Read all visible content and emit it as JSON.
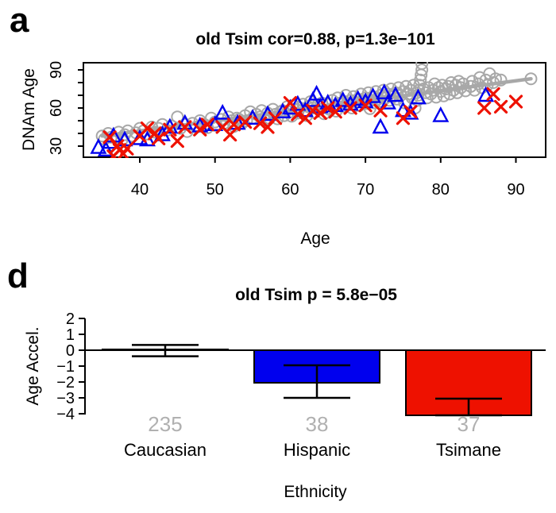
{
  "figure": {
    "panel_a_letter": "a",
    "panel_d_letter": "d"
  },
  "chart_data": [
    {
      "type": "scatter",
      "panel": "a",
      "title": "old Tsim cor=0.88, p=1.3e−101",
      "xlabel": "Age",
      "ylabel": "DNAm Age",
      "xlim": [
        32.5,
        94
      ],
      "ylim": [
        21,
        95.5
      ],
      "x_ticks": [
        40,
        50,
        60,
        70,
        80,
        90
      ],
      "y_ticks": [
        30,
        40,
        50,
        60,
        70,
        80,
        90
      ],
      "y_tick_labels": {
        "30": "30",
        "60": "60",
        "90": "90"
      },
      "grid": false,
      "regression_line": {
        "x1": 35,
        "y1": 38,
        "x2": 92,
        "y2": 83,
        "color": "#a8a8a8"
      },
      "series": [
        {
          "name": "Caucasian",
          "marker": "circle",
          "color": "#a8a8a8",
          "points": [
            [
              35,
              38
            ],
            [
              35.3,
              35.5
            ],
            [
              35.8,
              40
            ],
            [
              36.2,
              37
            ],
            [
              36.8,
              36
            ],
            [
              37.2,
              41
            ],
            [
              37.6,
              34.5
            ],
            [
              38,
              39
            ],
            [
              38.4,
              42
            ],
            [
              39,
              38
            ],
            [
              39.5,
              40.5
            ],
            [
              40,
              44
            ],
            [
              40.5,
              42
            ],
            [
              41,
              39.5
            ],
            [
              41.6,
              45
            ],
            [
              42,
              41
            ],
            [
              42.5,
              44
            ],
            [
              43,
              47
            ],
            [
              43.6,
              42.5
            ],
            [
              44.2,
              46
            ],
            [
              45,
              53
            ],
            [
              45.4,
              44
            ],
            [
              46,
              47
            ],
            [
              46.3,
              41.5
            ],
            [
              47,
              48
            ],
            [
              47.5,
              45
            ],
            [
              48,
              50
            ],
            [
              48.6,
              47
            ],
            [
              49,
              44.5
            ],
            [
              49.5,
              52
            ],
            [
              50,
              49
            ],
            [
              50.2,
              46
            ],
            [
              50.8,
              51
            ],
            [
              51.2,
              48
            ],
            [
              51.8,
              53
            ],
            [
              52.2,
              50
            ],
            [
              52.5,
              45.5
            ],
            [
              52.9,
              52
            ],
            [
              53.2,
              51
            ],
            [
              53.6,
              48
            ],
            [
              54,
              54
            ],
            [
              54.2,
              50
            ],
            [
              54.7,
              57
            ],
            [
              55,
              52
            ],
            [
              55.5,
              55
            ],
            [
              56,
              53
            ],
            [
              56.2,
              58
            ],
            [
              56.6,
              50.5
            ],
            [
              57,
              56
            ],
            [
              57.2,
              52
            ],
            [
              57.7,
              59
            ],
            [
              58,
              55
            ],
            [
              58.3,
              51.5
            ],
            [
              58.7,
              57
            ],
            [
              59,
              58
            ],
            [
              59.2,
              54
            ],
            [
              59.6,
              61
            ],
            [
              60,
              57
            ],
            [
              60.2,
              53.5
            ],
            [
              60.4,
              62
            ],
            [
              60.8,
              59
            ],
            [
              61,
              56
            ],
            [
              61.3,
              60
            ],
            [
              61.7,
              63
            ],
            [
              62,
              58
            ],
            [
              62.2,
              54
            ],
            [
              62.4,
              61
            ],
            [
              62.7,
              65
            ],
            [
              63,
              60
            ],
            [
              63.2,
              56.5
            ],
            [
              63.6,
              62
            ],
            [
              64,
              59
            ],
            [
              64.2,
              64
            ],
            [
              64.5,
              55.5
            ],
            [
              65,
              63
            ],
            [
              65.2,
              59
            ],
            [
              65.6,
              66
            ],
            [
              66,
              62
            ],
            [
              66.1,
              57.5
            ],
            [
              66.3,
              68
            ],
            [
              66.7,
              64
            ],
            [
              67,
              61
            ],
            [
              67.2,
              65
            ],
            [
              67.4,
              70
            ],
            [
              67.7,
              63
            ],
            [
              68,
              66
            ],
            [
              68.2,
              60
            ],
            [
              68.4,
              69
            ],
            [
              68.7,
              64.5
            ],
            [
              69,
              67
            ],
            [
              69.2,
              62
            ],
            [
              69.4,
              71
            ],
            [
              69.7,
              65
            ],
            [
              70,
              68
            ],
            [
              70.2,
              63.5
            ],
            [
              70.4,
              72
            ],
            [
              70.6,
              59.5
            ],
            [
              70.8,
              66
            ],
            [
              71,
              69
            ],
            [
              71.2,
              64
            ],
            [
              71.4,
              73
            ],
            [
              71.7,
              67
            ],
            [
              72,
              70
            ],
            [
              72.2,
              65
            ],
            [
              72.4,
              74
            ],
            [
              72.7,
              68
            ],
            [
              73,
              71
            ],
            [
              73.2,
              66
            ],
            [
              73.4,
              75
            ],
            [
              73.7,
              69
            ],
            [
              74,
              72
            ],
            [
              74.2,
              67
            ],
            [
              74.4,
              76
            ],
            [
              74.7,
              70
            ],
            [
              75,
              73
            ],
            [
              75.2,
              64
            ],
            [
              75.4,
              77
            ],
            [
              75.7,
              71
            ],
            [
              76,
              74
            ],
            [
              76.2,
              68
            ],
            [
              76.4,
              78
            ],
            [
              76.6,
              60
            ],
            [
              76.8,
              72
            ],
            [
              76.9,
              66
            ],
            [
              77,
              70
            ],
            [
              77.1,
              74
            ],
            [
              77.2,
              78
            ],
            [
              77.3,
              82
            ],
            [
              77.4,
              86
            ],
            [
              77.5,
              90
            ],
            [
              77.5,
              95
            ],
            [
              77.7,
              75
            ],
            [
              78,
              72
            ],
            [
              78.2,
              68
            ],
            [
              78.4,
              76
            ],
            [
              78.7,
              71
            ],
            [
              79,
              74
            ],
            [
              79.2,
              79
            ],
            [
              79.4,
              68.5
            ],
            [
              79.7,
              76
            ],
            [
              80,
              73
            ],
            [
              80.2,
              78
            ],
            [
              80.4,
              69.5
            ],
            [
              80.7,
              75
            ],
            [
              81,
              77
            ],
            [
              81.2,
              71
            ],
            [
              81.4,
              80
            ],
            [
              81.7,
              74
            ],
            [
              82,
              78
            ],
            [
              82.2,
              72
            ],
            [
              82.4,
              81
            ],
            [
              82.7,
              76
            ],
            [
              83,
              79
            ],
            [
              83.3,
              73.5
            ],
            [
              84,
              77
            ],
            [
              84.2,
              81
            ],
            [
              84.5,
              74
            ],
            [
              85,
              79
            ],
            [
              85.2,
              84
            ],
            [
              85.5,
              76
            ],
            [
              86,
              82
            ],
            [
              86.2,
              78
            ],
            [
              86.5,
              87
            ],
            [
              87,
              80
            ],
            [
              87.3,
              83
            ],
            [
              88,
              82
            ],
            [
              92,
              83
            ]
          ]
        },
        {
          "name": "Hispanic",
          "marker": "triangle",
          "color": "#0000ee",
          "points": [
            [
              34.5,
              29
            ],
            [
              35.5,
              27
            ],
            [
              36,
              33
            ],
            [
              36.5,
              38
            ],
            [
              38,
              35
            ],
            [
              40,
              36
            ],
            [
              41,
              35
            ],
            [
              43,
              39
            ],
            [
              44,
              45
            ],
            [
              46,
              48
            ],
            [
              48,
              46
            ],
            [
              50,
              47
            ],
            [
              51,
              56
            ],
            [
              53,
              48
            ],
            [
              55,
              52
            ],
            [
              57,
              55
            ],
            [
              59,
              57
            ],
            [
              60,
              60
            ],
            [
              61,
              63
            ],
            [
              62,
              58
            ],
            [
              63,
              66
            ],
            [
              63.5,
              71
            ],
            [
              64,
              61
            ],
            [
              65,
              64
            ],
            [
              66,
              62
            ],
            [
              67,
              66
            ],
            [
              68,
              63
            ],
            [
              69,
              67
            ],
            [
              70,
              65
            ],
            [
              71,
              69
            ],
            [
              72,
              45
            ],
            [
              72.5,
              72
            ],
            [
              73,
              64
            ],
            [
              74,
              70
            ],
            [
              75,
              58
            ],
            [
              76,
              56
            ],
            [
              77,
              68
            ],
            [
              80,
              54
            ],
            [
              86,
              70
            ]
          ]
        },
        {
          "name": "Tsimane",
          "marker": "x",
          "color": "#ee1100",
          "points": [
            [
              36,
              37
            ],
            [
              36.5,
              22
            ],
            [
              37,
              30
            ],
            [
              37.3,
              27
            ],
            [
              37.8,
              24
            ],
            [
              38.3,
              28
            ],
            [
              40,
              38
            ],
            [
              41,
              44
            ],
            [
              42,
              40
            ],
            [
              42.5,
              36
            ],
            [
              44,
              43
            ],
            [
              45,
              34
            ],
            [
              46,
              45
            ],
            [
              48,
              43
            ],
            [
              49,
              47
            ],
            [
              51,
              45
            ],
            [
              52,
              39
            ],
            [
              52.5,
              47
            ],
            [
              54,
              49
            ],
            [
              56,
              48
            ],
            [
              57,
              45
            ],
            [
              58,
              52
            ],
            [
              60,
              64
            ],
            [
              61,
              55
            ],
            [
              62,
              52
            ],
            [
              63,
              58
            ],
            [
              64,
              56
            ],
            [
              65,
              60
            ],
            [
              66,
              57
            ],
            [
              68,
              60
            ],
            [
              70,
              62
            ],
            [
              72,
              58
            ],
            [
              75,
              52
            ],
            [
              76,
              57
            ],
            [
              85.8,
              60
            ],
            [
              87,
              71
            ],
            [
              88,
              61
            ],
            [
              90,
              65
            ]
          ]
        }
      ]
    },
    {
      "type": "bar",
      "panel": "d",
      "title": "old Tsim p = 5.8e−05",
      "xlabel": "Ethnicity",
      "ylabel": "Age Accel.",
      "categories": [
        "Caucasian",
        "Hispanic",
        "Tsimane"
      ],
      "values": [
        0.05,
        -2.05,
        -4.1
      ],
      "errors_high": [
        0.33,
        -0.95,
        -3.05
      ],
      "errors_low": [
        -0.38,
        -3.0,
        -4.1
      ],
      "counts": [
        "235",
        "38",
        "37"
      ],
      "bar_colors": [
        "#ffffff",
        "#0000ee",
        "#ee1100"
      ],
      "count_color": "#b0b0b0",
      "axis_color": "#000000",
      "y_ticks": [
        2,
        1,
        0,
        -1,
        -2,
        -3,
        -4
      ],
      "y_tick_labels": [
        "2",
        "1",
        "0",
        "−1",
        "−2",
        "−3",
        "−4"
      ],
      "ylim": [
        -4.3,
        2
      ],
      "grid": false
    }
  ]
}
